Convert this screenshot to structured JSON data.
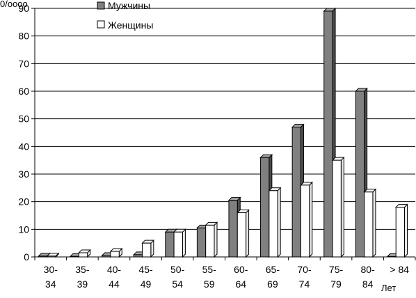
{
  "chart_data": {
    "type": "bar",
    "unit_label": "0/оооо",
    "xlabel": "Лет",
    "ylim": [
      0,
      90
    ],
    "y_ticks": [
      "0",
      "10",
      "20",
      "30",
      "40",
      "50",
      "60",
      "70",
      "80",
      "90"
    ],
    "grid": true,
    "legend_position": "top",
    "categories": [
      {
        "line1": "30-",
        "line2": "34"
      },
      {
        "line1": "35-",
        "line2": "39"
      },
      {
        "line1": "40-",
        "line2": "44"
      },
      {
        "line1": "45-",
        "line2": "49"
      },
      {
        "line1": "50-",
        "line2": "54"
      },
      {
        "line1": "55-",
        "line2": "59"
      },
      {
        "line1": "60-",
        "line2": "64"
      },
      {
        "line1": "65-",
        "line2": "69"
      },
      {
        "line1": "70-",
        "line2": "74"
      },
      {
        "line1": "75-",
        "line2": "79"
      },
      {
        "line1": "80-",
        "line2": "84"
      },
      {
        "line1": "> 84",
        "line2": ""
      }
    ],
    "series": [
      {
        "name": "Мужчины",
        "color": "#808080",
        "values": [
          0.3,
          0.2,
          0.5,
          0.8,
          9,
          10.5,
          20.5,
          36,
          47,
          89,
          60,
          0
        ]
      },
      {
        "name": "Женщины",
        "color": "#ffffff",
        "values": [
          0.3,
          1.5,
          2,
          5,
          9,
          11.5,
          16,
          24,
          26,
          35,
          23.5,
          18
        ]
      }
    ]
  }
}
